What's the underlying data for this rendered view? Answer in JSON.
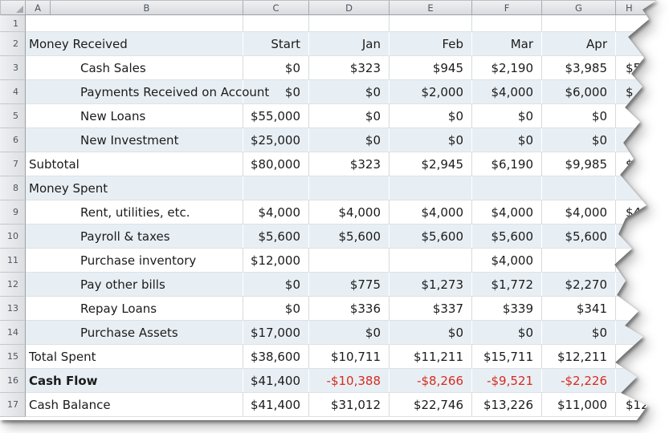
{
  "spreadsheet": {
    "column_headers": [
      "A",
      "B",
      "C",
      "D",
      "E",
      "F",
      "G",
      "H"
    ],
    "icons": {
      "select_all": "select-all-triangle"
    },
    "colors": {
      "band": "#e8eff4",
      "negative": "#d62b1f",
      "grid_line": "#d5dade",
      "cell_text": "#1b1b1b",
      "header_text": "#4e555d"
    },
    "rows": [
      {
        "num": "1",
        "label": "",
        "indent": false,
        "bold": false,
        "band": false,
        "values": [
          "",
          "",
          "",
          "",
          "",
          ""
        ]
      },
      {
        "num": "2",
        "label": "Money Received",
        "indent": false,
        "bold": false,
        "band": true,
        "values": [
          "Start",
          "Jan",
          "Feb",
          "Mar",
          "Apr",
          ""
        ]
      },
      {
        "num": "3",
        "label": "Cash Sales",
        "indent": true,
        "bold": false,
        "band": false,
        "values": [
          "$0",
          "$323",
          "$945",
          "$2,190",
          "$3,985",
          "$5"
        ]
      },
      {
        "num": "4",
        "label": "Payments Received on Account",
        "indent": true,
        "bold": false,
        "band": true,
        "values": [
          "$0",
          "$0",
          "$2,000",
          "$4,000",
          "$6,000",
          "$"
        ]
      },
      {
        "num": "5",
        "label": "New Loans",
        "indent": true,
        "bold": false,
        "band": false,
        "values": [
          "$55,000",
          "$0",
          "$0",
          "$0",
          "$0",
          ""
        ]
      },
      {
        "num": "6",
        "label": "New Investment",
        "indent": true,
        "bold": false,
        "band": true,
        "values": [
          "$25,000",
          "$0",
          "$0",
          "$0",
          "$0",
          ""
        ]
      },
      {
        "num": "7",
        "label": "Subtotal",
        "indent": false,
        "bold": false,
        "band": false,
        "values": [
          "$80,000",
          "$323",
          "$2,945",
          "$6,190",
          "$9,985",
          "$13"
        ]
      },
      {
        "num": "8",
        "label": "Money Spent",
        "indent": false,
        "bold": false,
        "band": true,
        "values": [
          "",
          "",
          "",
          "",
          "",
          ""
        ]
      },
      {
        "num": "9",
        "label": "Rent, utilities, etc.",
        "indent": true,
        "bold": false,
        "band": false,
        "values": [
          "$4,000",
          "$4,000",
          "$4,000",
          "$4,000",
          "$4,000",
          "$4"
        ]
      },
      {
        "num": "10",
        "label": "Payroll & taxes",
        "indent": true,
        "bold": false,
        "band": true,
        "values": [
          "$5,600",
          "$5,600",
          "$5,600",
          "$5,600",
          "$5,600",
          "$5,"
        ]
      },
      {
        "num": "11",
        "label": "Purchase inventory",
        "indent": true,
        "bold": false,
        "band": false,
        "values": [
          "$12,000",
          "",
          "",
          "$4,000",
          "",
          ""
        ]
      },
      {
        "num": "12",
        "label": "Pay other bills",
        "indent": true,
        "bold": false,
        "band": true,
        "values": [
          "$0",
          "$775",
          "$1,273",
          "$1,772",
          "$2,270",
          "$2"
        ]
      },
      {
        "num": "13",
        "label": "Repay Loans",
        "indent": true,
        "bold": false,
        "band": false,
        "values": [
          "$0",
          "$336",
          "$337",
          "$339",
          "$341",
          ""
        ]
      },
      {
        "num": "14",
        "label": "Purchase Assets",
        "indent": true,
        "bold": false,
        "band": true,
        "values": [
          "$17,000",
          "$0",
          "$0",
          "$0",
          "$0",
          ""
        ]
      },
      {
        "num": "15",
        "label": "Total Spent",
        "indent": false,
        "bold": false,
        "band": false,
        "values": [
          "$38,600",
          "$10,711",
          "$11,211",
          "$15,711",
          "$12,211",
          ""
        ]
      },
      {
        "num": "16",
        "label": "Cash Flow",
        "indent": false,
        "bold": true,
        "band": true,
        "values": [
          "$41,400",
          "-$10,388",
          "-$8,266",
          "-$9,521",
          "-$2,226",
          ""
        ]
      },
      {
        "num": "17",
        "label": "Cash Balance",
        "indent": false,
        "bold": false,
        "band": false,
        "values": [
          "$41,400",
          "$31,012",
          "$22,746",
          "$13,226",
          "$11,000",
          "$12,"
        ]
      }
    ]
  }
}
